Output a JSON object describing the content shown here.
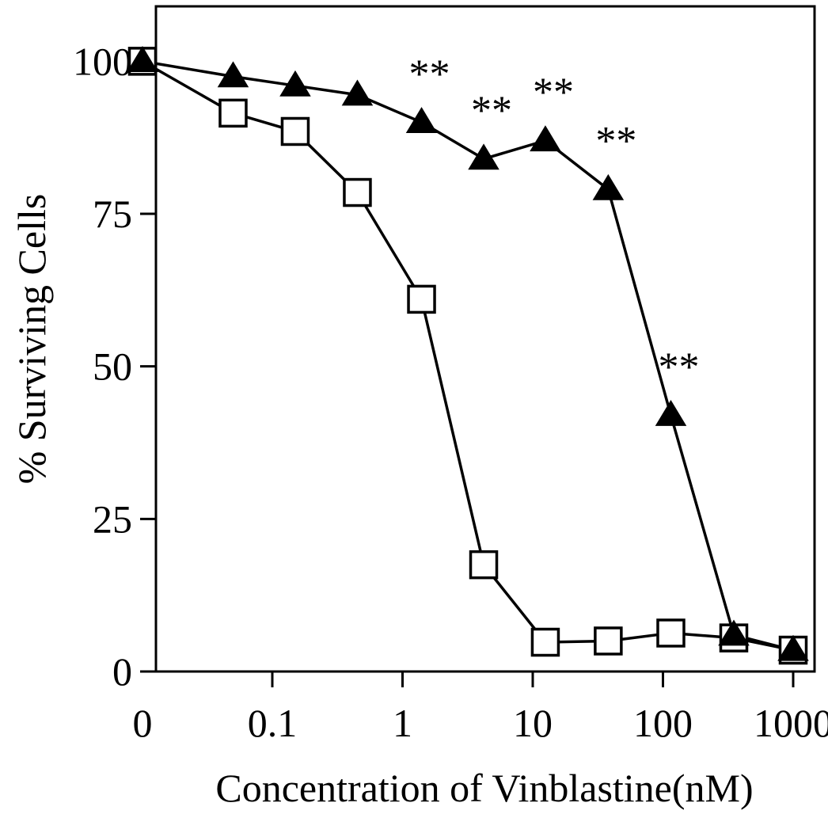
{
  "chart_data": {
    "type": "line",
    "title": "",
    "xlabel": "Concentration of Vinblastine(nM)",
    "ylabel": "% Surviving Cells",
    "x_scale": "log",
    "x_tick_labels": [
      "0",
      "0.1",
      "1",
      "10",
      "100",
      "1000"
    ],
    "x_tick_values": [
      0,
      0.1,
      1,
      10,
      100,
      1000
    ],
    "y_tick_labels": [
      "0",
      "25",
      "50",
      "75",
      "100"
    ],
    "y_tick_values": [
      0,
      25,
      50,
      75,
      100
    ],
    "ylim": [
      0,
      109
    ],
    "grid": false,
    "legend": "none",
    "significance_marker": "**",
    "colors": {
      "filled_marker": "#000000",
      "open_marker": "#ffffff",
      "line": "#000000"
    },
    "series": [
      {
        "marker": "filled-triangle",
        "points": [
          {
            "x": 0,
            "y": 100
          },
          {
            "x": 0.05,
            "y": 97.5
          },
          {
            "x": 0.15,
            "y": 96
          },
          {
            "x": 0.45,
            "y": 94.5
          },
          {
            "x": 1.4,
            "y": 90,
            "annotation": "**"
          },
          {
            "x": 4.2,
            "y": 84,
            "annotation": "**"
          },
          {
            "x": 12.5,
            "y": 87,
            "annotation": "**"
          },
          {
            "x": 38,
            "y": 79,
            "annotation": "**"
          },
          {
            "x": 115,
            "y": 42,
            "annotation": "**"
          },
          {
            "x": 350,
            "y": 6
          },
          {
            "x": 1000,
            "y": 3.5
          }
        ]
      },
      {
        "marker": "open-square",
        "points": [
          {
            "x": 0,
            "y": 100
          },
          {
            "x": 0.05,
            "y": 91.5
          },
          {
            "x": 0.15,
            "y": 88.5
          },
          {
            "x": 0.45,
            "y": 78.5
          },
          {
            "x": 1.4,
            "y": 61
          },
          {
            "x": 4.2,
            "y": 17.5
          },
          {
            "x": 12.5,
            "y": 4.8
          },
          {
            "x": 38,
            "y": 5
          },
          {
            "x": 115,
            "y": 6.3
          },
          {
            "x": 350,
            "y": 5.5
          },
          {
            "x": 1000,
            "y": 3.5
          }
        ]
      }
    ]
  }
}
